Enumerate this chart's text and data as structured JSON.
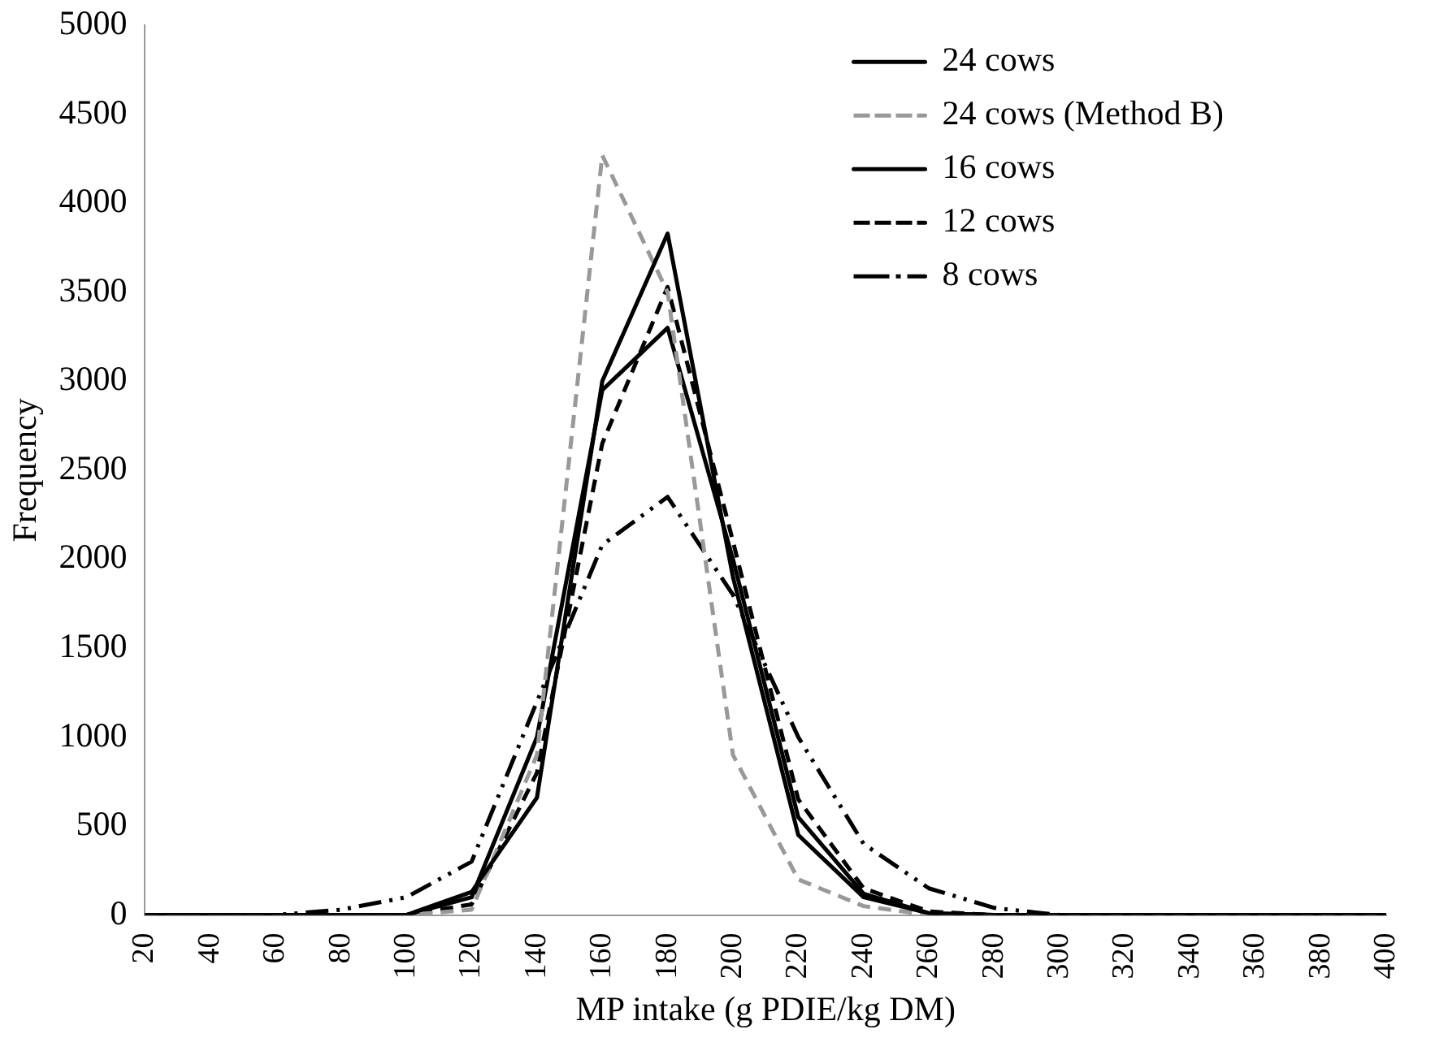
{
  "chart_data": {
    "type": "line",
    "xlabel": "MP intake (g PDIE/kg DM)",
    "ylabel": "Frequency",
    "categories": [
      "20",
      "40",
      "60",
      "80",
      "100",
      "120",
      "140",
      "160",
      "180",
      "200",
      "220",
      "240",
      "260",
      "280",
      "300",
      "320",
      "340",
      "360",
      "380",
      "400"
    ],
    "ylim": [
      0,
      5000
    ],
    "yticks": [
      0,
      500,
      1000,
      1500,
      2000,
      2500,
      3000,
      3500,
      4000,
      4500,
      5000
    ],
    "grid": false,
    "legend": "top right",
    "marker": "none",
    "series": [
      {
        "name": "24 cows",
        "color": "#000000",
        "line_style": "solid",
        "values": [
          0,
          0,
          0,
          0,
          0,
          130,
          660,
          3000,
          3830,
          1900,
          450,
          100,
          10,
          0,
          0,
          0,
          0,
          0,
          0,
          0
        ]
      },
      {
        "name": "24 cows (Method B)",
        "color": "#999999",
        "line_style": "dashed",
        "values": [
          0,
          0,
          0,
          0,
          0,
          30,
          900,
          4270,
          3500,
          900,
          200,
          50,
          0,
          0,
          0,
          0,
          0,
          0,
          0,
          0
        ]
      },
      {
        "name": "16 cows",
        "color": "#000000",
        "line_style": "solid",
        "values": [
          0,
          0,
          0,
          0,
          0,
          100,
          1000,
          2950,
          3300,
          2000,
          550,
          120,
          10,
          0,
          0,
          0,
          0,
          0,
          0,
          0
        ]
      },
      {
        "name": "12 cows",
        "color": "#000000",
        "line_style": "dashed",
        "values": [
          0,
          0,
          0,
          0,
          0,
          60,
          800,
          2650,
          3530,
          2100,
          650,
          150,
          20,
          0,
          0,
          0,
          0,
          0,
          0,
          0
        ]
      },
      {
        "name": "8 cows",
        "color": "#000000",
        "line_style": "dashdot",
        "values": [
          0,
          0,
          0,
          30,
          100,
          300,
          1200,
          2080,
          2350,
          1800,
          1000,
          400,
          150,
          40,
          0,
          0,
          0,
          0,
          0,
          0
        ]
      }
    ]
  }
}
